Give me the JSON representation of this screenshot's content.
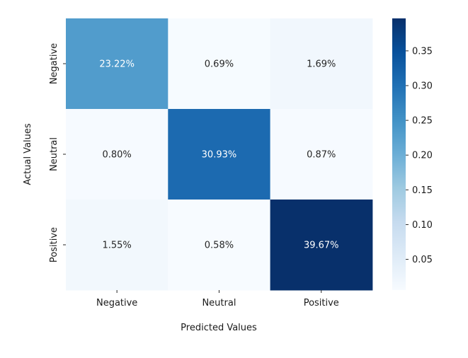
{
  "chart_data": {
    "type": "heatmap",
    "title": "",
    "xlabel": "Predicted Values",
    "ylabel": "Actual Values",
    "x_categories": [
      "Negative",
      "Neutral",
      "Positive"
    ],
    "y_categories": [
      "Negative",
      "Neutral",
      "Positive"
    ],
    "values": [
      [
        0.2322,
        0.0069,
        0.0169
      ],
      [
        0.008,
        0.3093,
        0.0087
      ],
      [
        0.0155,
        0.0058,
        0.3967
      ]
    ],
    "cell_labels": [
      [
        "23.22%",
        "0.69%",
        "1.69%"
      ],
      [
        "0.80%",
        "30.93%",
        "0.87%"
      ],
      [
        "1.55%",
        "0.58%",
        "39.67%"
      ]
    ],
    "colormap": "Blues",
    "colormap_stops": [
      "#f7fbff",
      "#deebf7",
      "#c6dbef",
      "#9ecae1",
      "#6baed6",
      "#4292c6",
      "#2171b5",
      "#08519c",
      "#08306b"
    ],
    "colorbar": {
      "range": [
        0.0058,
        0.3967
      ],
      "ticks": [
        0.05,
        0.1,
        0.15,
        0.2,
        0.25,
        0.3,
        0.35
      ],
      "tick_labels": [
        "0.05",
        "0.10",
        "0.15",
        "0.20",
        "0.25",
        "0.30",
        "0.35"
      ]
    },
    "grid": false
  }
}
